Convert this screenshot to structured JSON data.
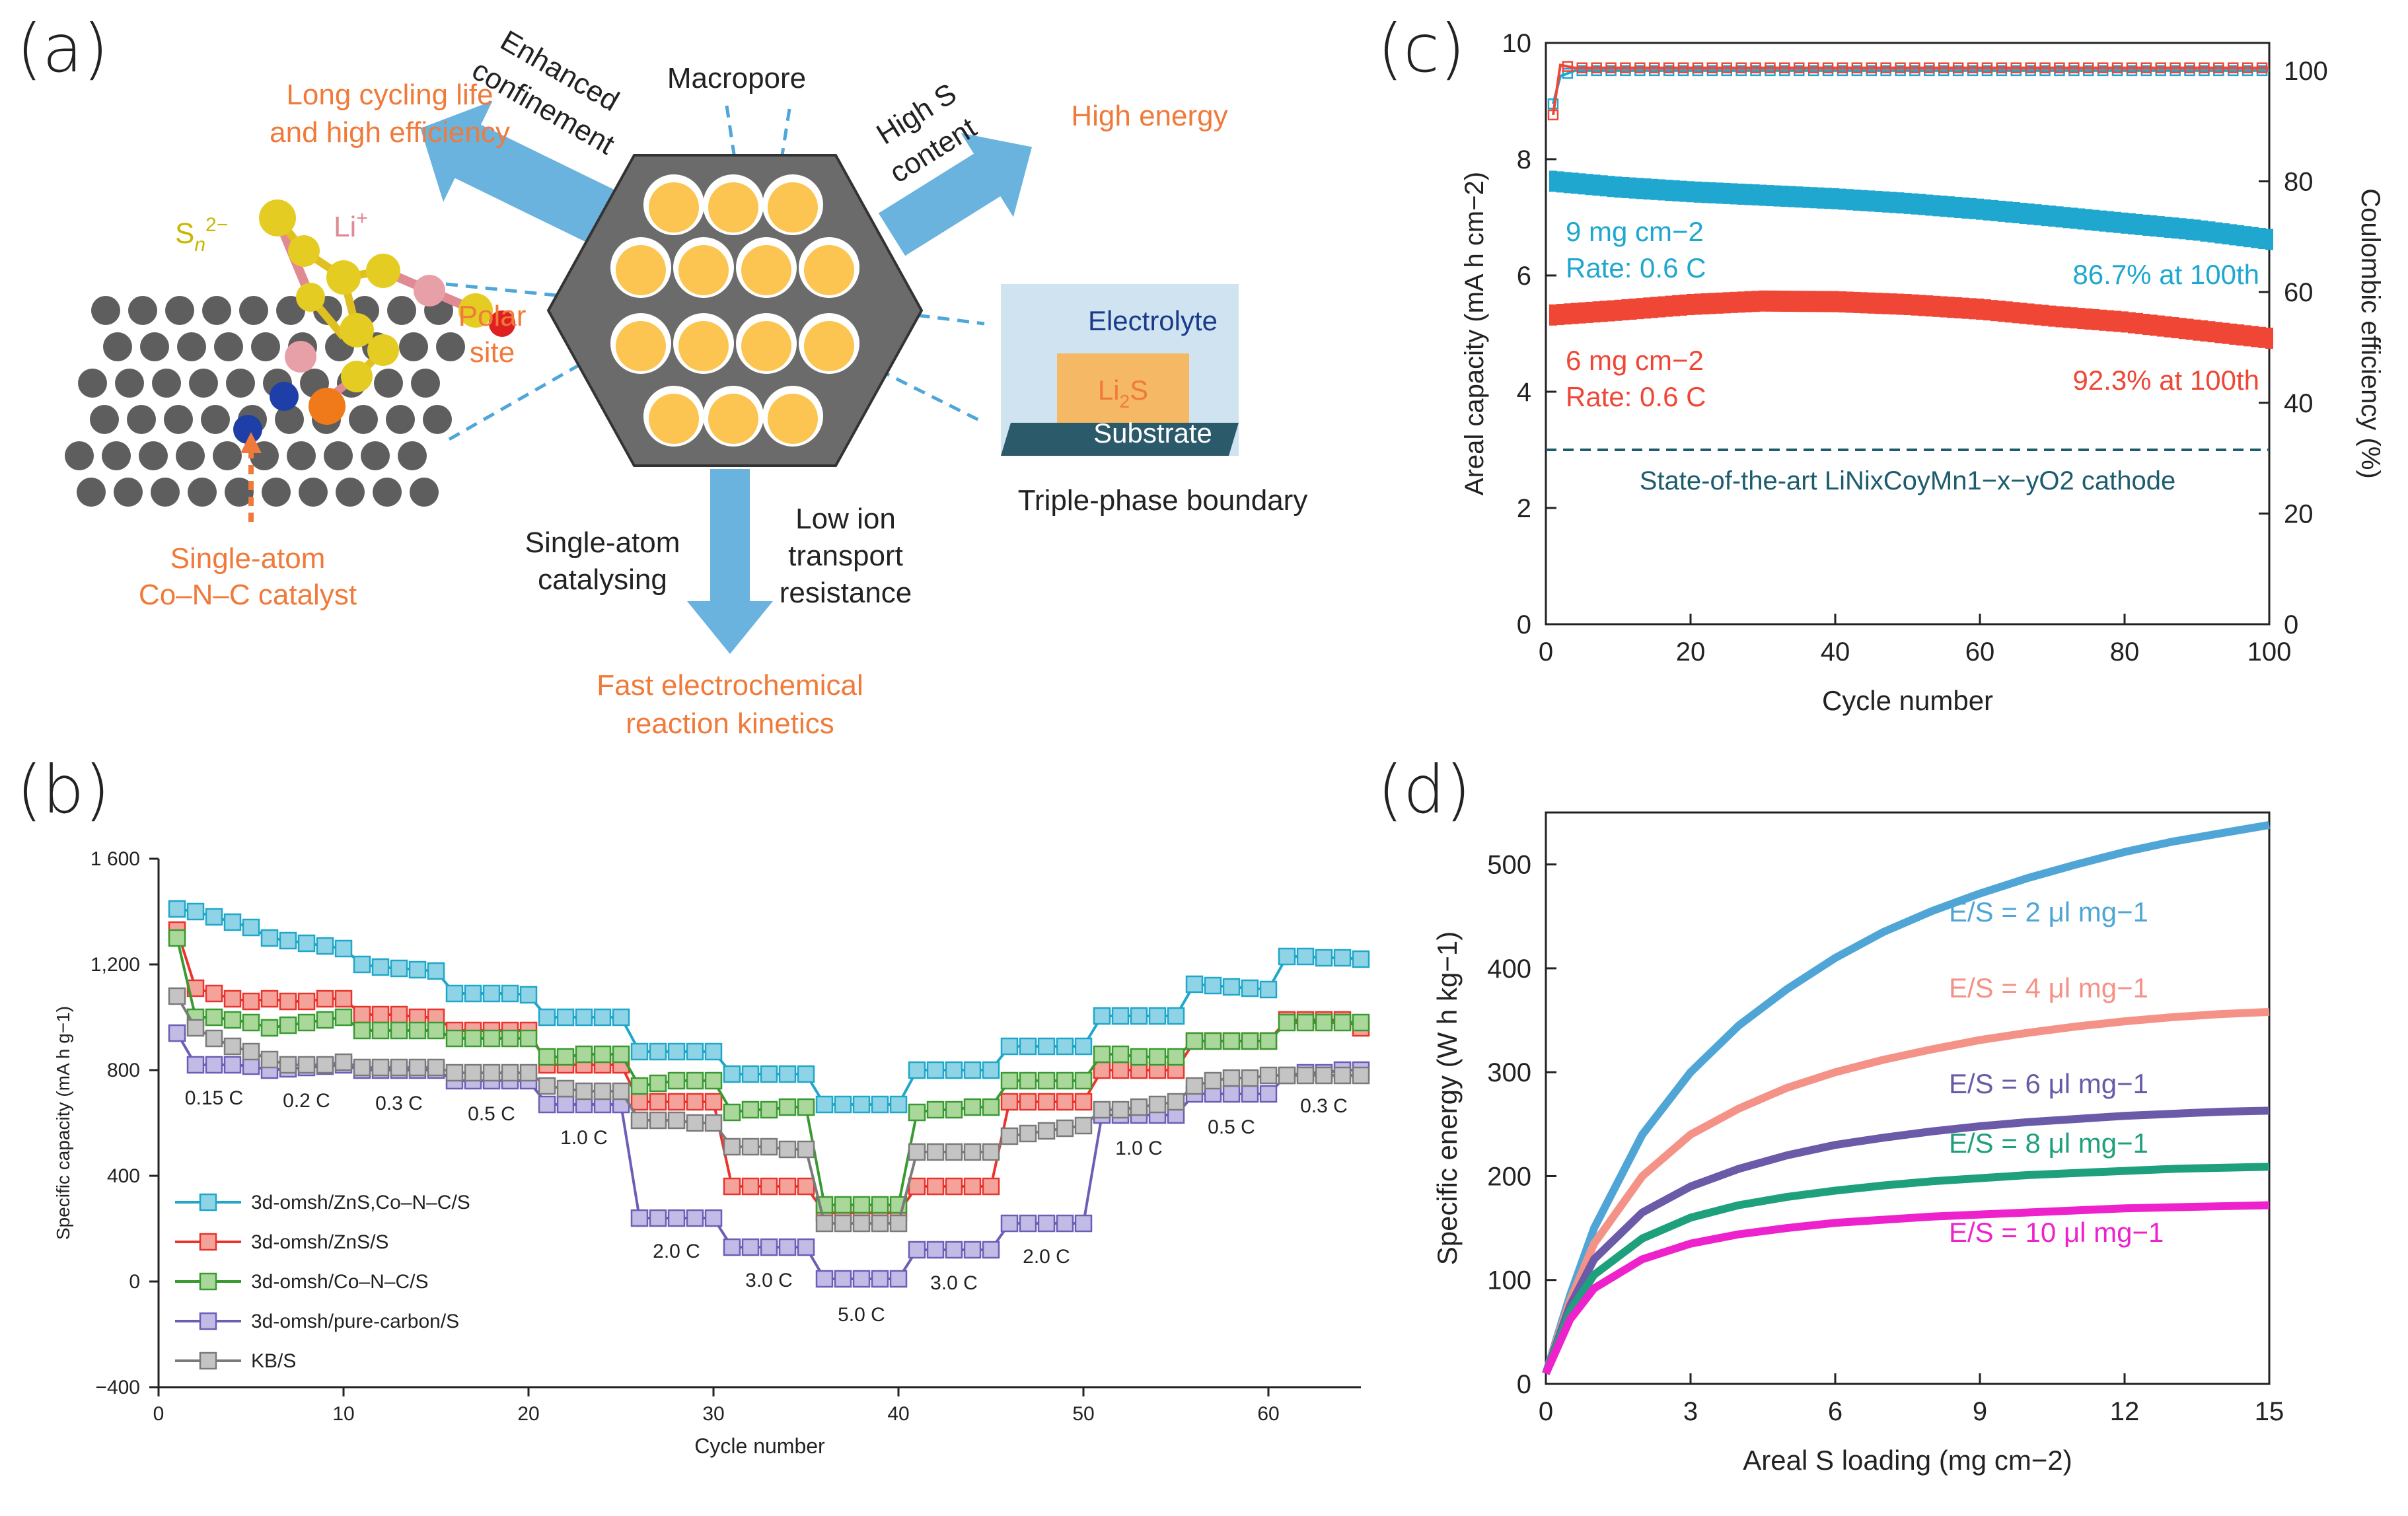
{
  "panel_labels": {
    "a": "(a)",
    "b": "(b)",
    "c": "(c)",
    "d": "(d)"
  },
  "colors": {
    "orange_text": "#f07a3a",
    "blue_arrow": "#4fa6d8",
    "dark_arrow_text": "#222222",
    "hex_fill": "#6b6b6b",
    "pore_fill": "#fcc451",
    "c_cyan": "#1fa7d0",
    "c_red": "#ef4636",
    "c_dashed": "#1c5c6e"
  },
  "panel_a": {
    "long_cycling": [
      "Long cycling life",
      "and high efficiency"
    ],
    "enhanced": [
      "Enhanced",
      "confinement"
    ],
    "macropore": "Macropore",
    "high_s": [
      "High S",
      "content"
    ],
    "high_energy": "High energy",
    "sn": "Sn2−",
    "li": "Li+",
    "polar": [
      "Polar",
      "site"
    ],
    "single_atom_cat": [
      "Single-atom",
      "Co–N–C catalyst"
    ],
    "single_atom_catalysing": [
      "Single-atom",
      "catalysing"
    ],
    "low_ion": [
      "Low ion",
      "transport",
      "resistance"
    ],
    "fast": [
      "Fast electrochemical",
      "reaction kinetics"
    ],
    "electrolyte": "Electrolyte",
    "li2s": "Li2S",
    "substrate": "Substrate",
    "triple_phase": "Triple-phase boundary"
  },
  "chart_data": [
    {
      "id": "b",
      "type": "line",
      "title": "",
      "xlabel": "Cycle number",
      "ylabel": "Specific capacity (mA h g−1)",
      "xlim": [
        0,
        65
      ],
      "ylim": [
        -400,
        1600
      ],
      "xticks": [
        0,
        10,
        20,
        30,
        40,
        50,
        60
      ],
      "yticks": [
        -400,
        0,
        400,
        800,
        1200,
        1600
      ],
      "ytick_labels": [
        "−400",
        "0",
        "400",
        "800",
        "1,200",
        "1 600"
      ],
      "rate_steps": [
        {
          "label": "0.15 C",
          "start": 1,
          "end": 5
        },
        {
          "label": "0.2 C",
          "start": 6,
          "end": 10
        },
        {
          "label": "0.3 C",
          "start": 11,
          "end": 15
        },
        {
          "label": "0.5 C",
          "start": 16,
          "end": 20
        },
        {
          "label": "1.0 C",
          "start": 21,
          "end": 25
        },
        {
          "label": "2.0 C",
          "start": 26,
          "end": 30
        },
        {
          "label": "3.0 C",
          "start": 31,
          "end": 35
        },
        {
          "label": "5.0 C",
          "start": 36,
          "end": 40
        },
        {
          "label": "3.0 C",
          "start": 41,
          "end": 45
        },
        {
          "label": "2.0 C",
          "start": 46,
          "end": 50
        },
        {
          "label": "1.0 C",
          "start": 51,
          "end": 55
        },
        {
          "label": "0.5 C",
          "start": 56,
          "end": 60
        },
        {
          "label": "0.3 C",
          "start": 61,
          "end": 65
        }
      ],
      "series": [
        {
          "name": "3d-omsh/ZnS,Co–N–C/S",
          "color": "#1fa7c9",
          "fill": "#8fd3e6",
          "values": [
            1410,
            1400,
            1380,
            1360,
            1340,
            1300,
            1290,
            1280,
            1270,
            1260,
            1200,
            1190,
            1185,
            1180,
            1175,
            1090,
            1090,
            1090,
            1090,
            1085,
            1000,
            1000,
            1000,
            1000,
            1000,
            870,
            870,
            870,
            870,
            870,
            785,
            785,
            785,
            785,
            785,
            670,
            670,
            670,
            670,
            670,
            800,
            800,
            800,
            800,
            800,
            890,
            890,
            890,
            890,
            890,
            1005,
            1005,
            1005,
            1005,
            1005,
            1125,
            1120,
            1115,
            1110,
            1105,
            1230,
            1230,
            1225,
            1225,
            1220
          ]
        },
        {
          "name": "3d-omsh/ZnS/S",
          "color": "#e8342c",
          "fill": "#f4a39b",
          "values": [
            1330,
            1110,
            1090,
            1070,
            1060,
            1070,
            1060,
            1060,
            1070,
            1070,
            1010,
            1010,
            1010,
            1000,
            1000,
            950,
            950,
            950,
            950,
            950,
            820,
            820,
            820,
            820,
            820,
            680,
            680,
            680,
            680,
            680,
            360,
            360,
            360,
            360,
            360,
            260,
            260,
            260,
            260,
            260,
            360,
            360,
            360,
            360,
            360,
            680,
            680,
            680,
            680,
            680,
            800,
            800,
            800,
            800,
            800,
            910,
            910,
            910,
            910,
            910,
            990,
            990,
            990,
            990,
            960
          ]
        },
        {
          "name": "3d-omsh/Co–N–C/S",
          "color": "#3a9a32",
          "fill": "#a9d89a",
          "values": [
            1300,
            1000,
            1000,
            990,
            980,
            960,
            970,
            980,
            990,
            1000,
            950,
            950,
            950,
            950,
            950,
            920,
            920,
            920,
            920,
            920,
            850,
            850,
            860,
            860,
            860,
            740,
            750,
            760,
            760,
            760,
            640,
            650,
            650,
            660,
            660,
            290,
            290,
            290,
            290,
            290,
            640,
            650,
            650,
            660,
            660,
            760,
            760,
            760,
            760,
            760,
            860,
            860,
            850,
            850,
            850,
            910,
            910,
            910,
            910,
            910,
            980,
            980,
            980,
            980,
            980
          ]
        },
        {
          "name": "3d-omsh/pure-carbon/S",
          "color": "#6a5fb6",
          "fill": "#c1bbe5",
          "values": [
            940,
            820,
            820,
            820,
            815,
            800,
            805,
            810,
            815,
            820,
            800,
            800,
            800,
            800,
            800,
            760,
            760,
            760,
            760,
            760,
            670,
            670,
            670,
            670,
            670,
            240,
            240,
            240,
            240,
            240,
            130,
            130,
            130,
            130,
            130,
            10,
            10,
            10,
            10,
            10,
            120,
            120,
            120,
            120,
            120,
            220,
            220,
            220,
            220,
            220,
            630,
            630,
            630,
            630,
            630,
            710,
            710,
            710,
            710,
            710,
            780,
            790,
            790,
            800,
            800
          ]
        },
        {
          "name": "KB/S",
          "color": "#7a7a7a",
          "fill": "#c4c4c4",
          "values": [
            1080,
            960,
            920,
            890,
            870,
            840,
            820,
            820,
            820,
            830,
            810,
            810,
            810,
            810,
            810,
            790,
            790,
            790,
            790,
            790,
            740,
            730,
            720,
            720,
            720,
            610,
            610,
            610,
            600,
            600,
            510,
            510,
            510,
            500,
            500,
            220,
            220,
            220,
            220,
            220,
            490,
            490,
            490,
            490,
            490,
            550,
            560,
            570,
            580,
            590,
            650,
            650,
            660,
            670,
            680,
            740,
            760,
            770,
            770,
            780,
            780,
            780,
            780,
            780,
            780
          ]
        }
      ]
    },
    {
      "id": "c",
      "type": "scatter",
      "title": "",
      "xlabel": "Cycle number",
      "ylabel": "Areal capacity (mA h cm−2)",
      "y2label": "Coulombic efficiency (%)",
      "xlim": [
        0,
        100
      ],
      "ylim": [
        0,
        10
      ],
      "y2lim": [
        0,
        105
      ],
      "xticks": [
        0,
        20,
        40,
        60,
        80,
        100
      ],
      "yticks": [
        0,
        2,
        4,
        6,
        8,
        10
      ],
      "y2ticks": [
        0,
        20,
        40,
        60,
        80,
        100
      ],
      "series": [
        {
          "name": "9 mg cm−2",
          "sub": "Rate: 0.6 C",
          "retention": "86.7% at 100th",
          "color": "#1fa7d0",
          "points": [
            [
              1,
              7.62
            ],
            [
              10,
              7.52
            ],
            [
              20,
              7.44
            ],
            [
              30,
              7.38
            ],
            [
              40,
              7.32
            ],
            [
              50,
              7.24
            ],
            [
              60,
              7.14
            ],
            [
              70,
              7.02
            ],
            [
              80,
              6.9
            ],
            [
              90,
              6.78
            ],
            [
              100,
              6.62
            ]
          ]
        },
        {
          "name": "6 mg cm−2",
          "sub": "Rate: 0.6 C",
          "retention": "92.3% at 100th",
          "color": "#ef4636",
          "points": [
            [
              1,
              5.32
            ],
            [
              10,
              5.4
            ],
            [
              20,
              5.5
            ],
            [
              30,
              5.56
            ],
            [
              40,
              5.55
            ],
            [
              50,
              5.5
            ],
            [
              60,
              5.42
            ],
            [
              70,
              5.3
            ],
            [
              80,
              5.2
            ],
            [
              90,
              5.06
            ],
            [
              100,
              4.92
            ]
          ]
        },
        {
          "name": "CE 9 mg",
          "color": "#1fa7d0",
          "points": [
            [
              1,
              94
            ],
            [
              2,
              99
            ],
            [
              4,
              100
            ],
            [
              100,
              100
            ]
          ]
        },
        {
          "name": "CE 6 mg",
          "color": "#ef4636",
          "points": [
            [
              1,
              92
            ],
            [
              2,
              101
            ],
            [
              4,
              100.5
            ],
            [
              100,
              100.5
            ]
          ]
        }
      ],
      "reference_line": {
        "value": 3.0,
        "label": "State-of-the-art LiNixCoyMn1−x−yO2 cathode"
      }
    },
    {
      "id": "d",
      "type": "line",
      "title": "",
      "xlabel": "Areal S loading (mg cm−2)",
      "ylabel": "Specific energy (W h kg−1)",
      "xlim": [
        0,
        15
      ],
      "ylim": [
        0,
        550
      ],
      "xticks": [
        0,
        3,
        6,
        9,
        12,
        15
      ],
      "yticks": [
        0,
        100,
        200,
        300,
        400,
        500
      ],
      "series": [
        {
          "name": "E/S = 2 μl mg−1",
          "color": "#4fa6d6",
          "x": [
            0,
            0.5,
            1,
            2,
            3,
            4,
            5,
            6,
            7,
            8,
            9,
            10,
            11,
            12,
            13,
            14,
            15
          ],
          "values": [
            10,
            85,
            150,
            240,
            300,
            345,
            380,
            410,
            435,
            455,
            472,
            487,
            500,
            512,
            522,
            530,
            538
          ]
        },
        {
          "name": "E/S = 4 μl mg−1",
          "color": "#f59287",
          "x": [
            0,
            0.5,
            1,
            2,
            3,
            4,
            5,
            6,
            7,
            8,
            9,
            10,
            11,
            12,
            13,
            14,
            15
          ],
          "values": [
            10,
            80,
            135,
            200,
            240,
            265,
            285,
            300,
            312,
            322,
            331,
            338,
            344,
            349,
            353,
            356,
            358
          ]
        },
        {
          "name": "E/S = 6 μl mg−1",
          "color": "#6a5aa8",
          "x": [
            0,
            0.5,
            1,
            2,
            3,
            4,
            5,
            6,
            7,
            8,
            9,
            10,
            11,
            12,
            13,
            14,
            15
          ],
          "values": [
            10,
            75,
            120,
            165,
            190,
            207,
            220,
            230,
            237,
            243,
            248,
            252,
            255,
            258,
            260,
            262,
            263
          ]
        },
        {
          "name": "E/S = 8 μl mg−1",
          "color": "#1fa07c",
          "x": [
            0,
            0.5,
            1,
            2,
            3,
            4,
            5,
            6,
            7,
            8,
            9,
            10,
            11,
            12,
            13,
            14,
            15
          ],
          "values": [
            10,
            70,
            105,
            140,
            160,
            172,
            180,
            186,
            191,
            195,
            198,
            201,
            203,
            205,
            207,
            208,
            209
          ]
        },
        {
          "name": "E/S = 10 μl mg−1",
          "color": "#ee22cc",
          "x": [
            0,
            0.5,
            1,
            2,
            3,
            4,
            5,
            6,
            7,
            8,
            9,
            10,
            11,
            12,
            13,
            14,
            15
          ],
          "values": [
            10,
            62,
            92,
            120,
            135,
            144,
            150,
            155,
            158,
            161,
            163,
            165,
            167,
            169,
            170,
            171,
            172
          ]
        }
      ]
    }
  ]
}
